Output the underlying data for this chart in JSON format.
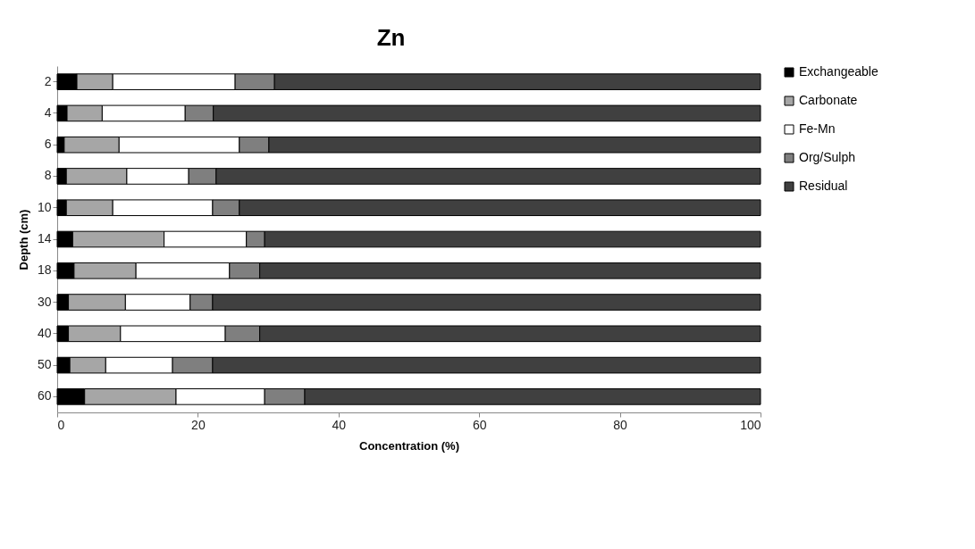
{
  "chart_data": {
    "type": "bar",
    "title": "Zn",
    "xlabel": "Concentration (%)",
    "ylabel": "Depth (cm)",
    "orientation": "horizontal",
    "stacked": true,
    "legend": "right",
    "grid": false,
    "categories": [
      "2",
      "4",
      "6",
      "8",
      "10",
      "14",
      "18",
      "30",
      "40",
      "50",
      "60"
    ],
    "xlim": [
      0,
      100
    ],
    "xticks": [
      0,
      20,
      40,
      60,
      80,
      100
    ],
    "series": [
      {
        "name": "Exchangeable",
        "color": "#000000",
        "values": [
          2.8,
          1.4,
          1.0,
          1.3,
          1.3,
          2.2,
          2.4,
          1.6,
          1.6,
          1.8,
          3.9
        ]
      },
      {
        "name": "Carbonate",
        "color": "#a6a6a6",
        "values": [
          5.1,
          5.0,
          7.8,
          8.6,
          6.6,
          13.0,
          8.8,
          8.1,
          7.4,
          5.1,
          13.0
        ]
      },
      {
        "name": "Fe-Mn",
        "color": "#ffffff",
        "values": [
          17.4,
          11.8,
          17.1,
          8.8,
          14.2,
          11.7,
          13.3,
          9.2,
          14.9,
          9.5,
          12.6
        ]
      },
      {
        "name": "Org/Sulph",
        "color": "#7f7f7f",
        "values": [
          5.6,
          4.0,
          4.2,
          3.9,
          3.8,
          2.6,
          4.3,
          3.2,
          4.9,
          5.7,
          5.7
        ]
      },
      {
        "name": "Residual",
        "color": "#404040",
        "values": [
          69.1,
          77.8,
          69.9,
          77.4,
          74.1,
          70.5,
          71.2,
          77.9,
          71.2,
          77.9,
          64.8
        ]
      }
    ]
  }
}
